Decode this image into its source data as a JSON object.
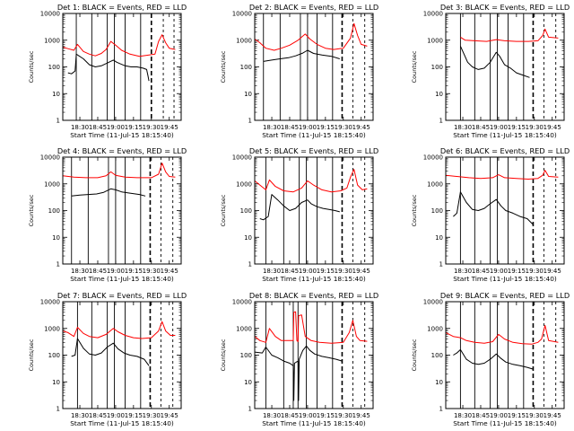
{
  "figure": {
    "ylabel": "Counts/sec",
    "xlabel": "Start Time (11-Jul-15 18:15:40)",
    "ytick_labels": [
      "1",
      "10",
      "100",
      "1000",
      "10000"
    ],
    "xtick_labels": [
      "18:30",
      "18:45",
      "19:00",
      "19:15",
      "19:30",
      "19:45"
    ],
    "colors": {
      "events": "#000000",
      "lld": "#ff0000",
      "axes": "#000000",
      "background": "#ffffff"
    }
  },
  "chart_data": [
    {
      "type": "line",
      "title": "Det 1: BLACK = Events, RED = LLD",
      "ylabel": "Counts/sec",
      "xlabel": "Start Time (11-Jul-15 18:15:40)",
      "y_scale": "log",
      "ylim": [
        1,
        10000
      ],
      "xlim": [
        "18:15:40",
        "19:55"
      ],
      "series": [
        {
          "name": "Events",
          "x": [
            "18:20",
            "18:23",
            "18:26",
            "18:27",
            "18:33",
            "18:38",
            "18:43",
            "18:48",
            "18:53",
            "18:58",
            "19:01",
            "19:04",
            "19:08",
            "19:13",
            "19:18",
            "19:23",
            "19:26",
            "19:27",
            "19:28"
          ],
          "y": [
            60,
            55,
            70,
            300,
            200,
            120,
            100,
            110,
            140,
            180,
            150,
            130,
            110,
            100,
            100,
            90,
            80,
            50,
            30
          ]
        },
        {
          "name": "LLD",
          "x": [
            "18:15:40",
            "18:20",
            "18:25",
            "18:28",
            "18:33",
            "18:38",
            "18:43",
            "18:48",
            "18:52",
            "18:56",
            "19:00",
            "19:05",
            "19:12",
            "19:20",
            "19:28",
            "19:33",
            "19:36",
            "19:39",
            "19:42",
            "19:45",
            "19:50"
          ],
          "y": [
            550,
            480,
            420,
            700,
            380,
            300,
            260,
            320,
            450,
            900,
            650,
            420,
            300,
            250,
            280,
            300,
            900,
            1600,
            800,
            500,
            450
          ]
        }
      ],
      "vlines_solid": [
        "18:27",
        "18:40",
        "18:53",
        "18:59",
        "19:08",
        "19:21"
      ],
      "vlines_dashed": [
        "19:30",
        "19:40",
        "19:49"
      ]
    },
    {
      "type": "line",
      "title": "Det 2: BLACK = Events, RED = LLD",
      "ylabel": "Counts/sec",
      "xlabel": "Start Time (11-Jul-15 18:15:40)",
      "y_scale": "log",
      "ylim": [
        1,
        10000
      ],
      "xlim": [
        "18:15:40",
        "19:55"
      ],
      "series": [
        {
          "name": "Events",
          "x": [
            "18:23",
            "18:30",
            "18:37",
            "18:44",
            "18:50",
            "18:56",
            "19:00",
            "19:05",
            "19:12",
            "19:20",
            "19:27"
          ],
          "y": [
            160,
            180,
            200,
            220,
            260,
            330,
            420,
            320,
            280,
            250,
            200
          ]
        },
        {
          "name": "LLD",
          "x": [
            "18:15:40",
            "18:20",
            "18:25",
            "18:32",
            "18:38",
            "18:45",
            "18:52",
            "18:58",
            "19:02",
            "19:08",
            "19:15",
            "19:22",
            "19:30",
            "19:36",
            "19:39",
            "19:42",
            "19:45",
            "19:50"
          ],
          "y": [
            1100,
            800,
            500,
            420,
            500,
            650,
            1000,
            1700,
            1100,
            700,
            500,
            450,
            500,
            1200,
            4200,
            1500,
            700,
            600
          ]
        }
      ],
      "vlines_solid": [
        "18:23",
        "18:37",
        "18:54",
        "19:00",
        "19:08",
        "19:21"
      ],
      "vlines_dashed": [
        "19:29",
        "19:38",
        "19:48"
      ]
    },
    {
      "type": "line",
      "title": "Det 3: BLACK = Events, RED = LLD",
      "ylabel": "Counts/sec",
      "xlabel": "Start Time (11-Jul-15 18:15:40)",
      "y_scale": "log",
      "ylim": [
        1,
        10000
      ],
      "xlim": [
        "18:15:40",
        "19:55"
      ],
      "series": [
        {
          "name": "Events",
          "x": [
            "18:28",
            "18:31",
            "18:34",
            "18:38",
            "18:43",
            "18:48",
            "18:53",
            "18:58",
            "19:01",
            "19:05",
            "19:10",
            "19:15",
            "19:20",
            "19:26"
          ],
          "y": [
            600,
            300,
            150,
            100,
            80,
            90,
            150,
            350,
            250,
            120,
            90,
            60,
            50,
            40
          ]
        },
        {
          "name": "LLD",
          "x": [
            "18:28",
            "18:32",
            "18:40",
            "18:50",
            "18:58",
            "19:05",
            "19:15",
            "19:25",
            "19:33",
            "19:37",
            "19:39",
            "19:42",
            "19:50"
          ],
          "y": [
            1300,
            1000,
            950,
            900,
            1050,
            950,
            900,
            900,
            950,
            1500,
            2600,
            1300,
            1200
          ]
        }
      ],
      "vlines_solid": [
        "18:28",
        "18:40",
        "18:53",
        "18:59",
        "19:08",
        "19:21"
      ],
      "vlines_dashed": [
        "19:29",
        "19:38",
        "19:48"
      ]
    },
    {
      "type": "line",
      "title": "Det 4: BLACK = Events, RED = LLD",
      "ylabel": "Counts/sec",
      "xlabel": "Start Time (11-Jul-15 18:15:40)",
      "y_scale": "log",
      "ylim": [
        1,
        10000
      ],
      "xlim": [
        "18:15:40",
        "19:55"
      ],
      "series": [
        {
          "name": "Events",
          "x": [
            "18:23",
            "18:30",
            "18:37",
            "18:44",
            "18:50",
            "18:56",
            "19:00",
            "19:05",
            "19:12",
            "19:20",
            "19:25"
          ],
          "y": [
            350,
            380,
            400,
            420,
            480,
            650,
            600,
            500,
            450,
            400,
            350
          ]
        },
        {
          "name": "LLD",
          "x": [
            "18:15:40",
            "18:25",
            "18:35",
            "18:45",
            "18:52",
            "18:56",
            "19:00",
            "19:08",
            "19:18",
            "19:30",
            "19:36",
            "19:39",
            "19:42",
            "19:45",
            "19:50"
          ],
          "y": [
            2000,
            1800,
            1700,
            1700,
            2000,
            2800,
            2100,
            1800,
            1700,
            1700,
            2300,
            6000,
            2800,
            1900,
            1800
          ]
        }
      ],
      "vlines_solid": [
        "18:23",
        "18:37",
        "18:54",
        "19:00",
        "19:08",
        "19:21"
      ],
      "vlines_dashed": [
        "19:29",
        "19:38",
        "19:48"
      ]
    },
    {
      "type": "line",
      "title": "Det 5: BLACK = Events, RED = LLD",
      "ylabel": "Counts/sec",
      "xlabel": "Start Time (11-Jul-15 18:15:40)",
      "y_scale": "log",
      "ylim": [
        1,
        10000
      ],
      "xlim": [
        "18:15:40",
        "19:55"
      ],
      "series": [
        {
          "name": "Events",
          "x": [
            "18:20",
            "18:23",
            "18:27",
            "18:30",
            "18:35",
            "18:40",
            "18:45",
            "18:50",
            "18:55",
            "19:00",
            "19:03",
            "19:08",
            "19:13",
            "19:18",
            "19:23",
            "19:27"
          ],
          "y": [
            50,
            45,
            60,
            400,
            250,
            150,
            100,
            120,
            200,
            250,
            180,
            140,
            120,
            110,
            100,
            90
          ]
        },
        {
          "name": "LLD",
          "x": [
            "18:15:40",
            "18:20",
            "18:25",
            "18:28",
            "18:33",
            "18:40",
            "18:48",
            "18:55",
            "19:00",
            "19:05",
            "19:12",
            "19:20",
            "19:28",
            "19:33",
            "19:36",
            "19:39",
            "19:42",
            "19:46",
            "19:50"
          ],
          "y": [
            1300,
            900,
            600,
            1400,
            800,
            550,
            500,
            700,
            1300,
            900,
            600,
            500,
            550,
            700,
            1800,
            3500,
            900,
            600,
            650
          ]
        }
      ],
      "vlines_solid": [
        "18:25",
        "18:40",
        "18:53",
        "18:59",
        "19:08",
        "19:21"
      ],
      "vlines_dashed": [
        "19:29",
        "19:38",
        "19:48"
      ]
    },
    {
      "type": "line",
      "title": "Det 6: BLACK = Events, RED = LLD",
      "ylabel": "Counts/sec",
      "xlabel": "Start Time (11-Jul-15 18:15:40)",
      "y_scale": "log",
      "ylim": [
        1,
        10000
      ],
      "xlim": [
        "18:15:40",
        "19:55"
      ],
      "series": [
        {
          "name": "Events",
          "x": [
            "18:22",
            "18:25",
            "18:28",
            "18:33",
            "18:38",
            "18:43",
            "18:48",
            "18:53",
            "18:58",
            "19:02",
            "19:06",
            "19:12",
            "19:18",
            "19:24",
            "19:29"
          ],
          "y": [
            60,
            80,
            500,
            200,
            110,
            100,
            120,
            180,
            260,
            150,
            100,
            80,
            60,
            50,
            30
          ]
        },
        {
          "name": "LLD",
          "x": [
            "18:15:40",
            "18:25",
            "18:35",
            "18:45",
            "18:55",
            "19:00",
            "19:05",
            "19:15",
            "19:25",
            "19:33",
            "19:37",
            "19:39",
            "19:42",
            "19:50"
          ],
          "y": [
            2100,
            1900,
            1700,
            1600,
            1700,
            2200,
            1700,
            1600,
            1500,
            1600,
            2100,
            3200,
            1900,
            1800
          ]
        }
      ],
      "vlines_solid": [
        "18:28",
        "18:40",
        "18:53",
        "18:59",
        "19:08",
        "19:21"
      ],
      "vlines_dashed": [
        "19:29",
        "19:38",
        "19:48"
      ]
    },
    {
      "type": "line",
      "title": "Det 7: BLACK = Events, RED = LLD",
      "ylabel": "Counts/sec",
      "xlabel": "Start Time (11-Jul-15 18:15:40)",
      "y_scale": "log",
      "ylim": [
        1,
        10000
      ],
      "xlim": [
        "18:15:40",
        "19:55"
      ],
      "series": [
        {
          "name": "Events",
          "x": [
            "18:23",
            "18:26",
            "18:28",
            "18:33",
            "18:38",
            "18:43",
            "18:48",
            "18:53",
            "18:58",
            "19:02",
            "19:07",
            "19:12",
            "19:18",
            "19:24",
            "19:28"
          ],
          "y": [
            90,
            100,
            420,
            180,
            110,
            100,
            120,
            200,
            280,
            170,
            120,
            100,
            90,
            70,
            40
          ]
        },
        {
          "name": "LLD",
          "x": [
            "18:15:40",
            "18:20",
            "18:25",
            "18:28",
            "18:33",
            "18:38",
            "18:45",
            "18:52",
            "18:58",
            "19:02",
            "19:08",
            "19:15",
            "19:22",
            "19:30",
            "19:36",
            "19:39",
            "19:42",
            "19:46",
            "19:50"
          ],
          "y": [
            800,
            700,
            500,
            1100,
            650,
            500,
            450,
            600,
            1000,
            750,
            550,
            450,
            420,
            450,
            800,
            1800,
            800,
            550,
            550
          ]
        }
      ],
      "vlines_solid": [
        "18:28",
        "18:40",
        "18:53",
        "18:59",
        "19:08",
        "19:21"
      ],
      "vlines_dashed": [
        "19:29",
        "19:38",
        "19:48"
      ]
    },
    {
      "type": "line",
      "title": "Det 8: BLACK = Events, RED = LLD",
      "ylabel": "Counts/sec",
      "xlabel": "Start Time (11-Jul-15 18:15:40)",
      "y_scale": "log",
      "ylim": [
        1,
        10000
      ],
      "xlim": [
        "18:15:40",
        "19:55"
      ],
      "series": [
        {
          "name": "Events",
          "x": [
            "18:15:40",
            "18:22",
            "18:25",
            "18:30",
            "18:35",
            "18:40",
            "18:45",
            "18:48",
            "18:48:30",
            "18:49",
            "18:52",
            "18:52:30",
            "18:53",
            "18:56",
            "18:59",
            "19:02",
            "19:06",
            "19:12",
            "19:18",
            "19:24",
            "19:29"
          ],
          "y": [
            130,
            120,
            200,
            100,
            80,
            60,
            50,
            40,
            2,
            50,
            60,
            2,
            70,
            150,
            220,
            150,
            110,
            90,
            80,
            70,
            60
          ]
        },
        {
          "name": "LLD",
          "x": [
            "18:15:40",
            "18:20",
            "18:25",
            "18:28",
            "18:33",
            "18:38",
            "18:45",
            "18:48",
            "18:48:30",
            "18:50",
            "18:51",
            "18:52",
            "18:52:30",
            "18:55",
            "18:58",
            "19:03",
            "19:10",
            "19:20",
            "19:30",
            "19:35",
            "19:38",
            "19:41",
            "19:44",
            "19:50"
          ],
          "y": [
            500,
            350,
            300,
            1000,
            500,
            350,
            350,
            350,
            4000,
            4200,
            350,
            320,
            3000,
            3200,
            500,
            350,
            300,
            280,
            300,
            700,
            2000,
            500,
            350,
            330
          ]
        }
      ],
      "vlines_solid": [
        "18:25",
        "18:40",
        "18:48",
        "18:52",
        "18:59",
        "19:08",
        "19:21"
      ],
      "vlines_dashed": [
        "19:29",
        "19:38",
        "19:48"
      ]
    },
    {
      "type": "line",
      "title": "Det 9: BLACK = Events, RED = LLD",
      "ylabel": "Counts/sec",
      "xlabel": "Start Time (11-Jul-15 18:15:40)",
      "y_scale": "log",
      "ylim": [
        1,
        10000
      ],
      "xlim": [
        "18:15:40",
        "19:55"
      ],
      "series": [
        {
          "name": "Events",
          "x": [
            "18:22",
            "18:25",
            "18:28",
            "18:33",
            "18:38",
            "18:43",
            "18:48",
            "18:53",
            "18:58",
            "19:02",
            "19:06",
            "19:12",
            "19:18",
            "19:24",
            "19:29"
          ],
          "y": [
            100,
            120,
            160,
            70,
            50,
            45,
            50,
            70,
            110,
            75,
            55,
            45,
            40,
            35,
            30
          ]
        },
        {
          "name": "LLD",
          "x": [
            "18:15:40",
            "18:22",
            "18:28",
            "18:33",
            "18:40",
            "18:48",
            "18:55",
            "19:00",
            "19:05",
            "19:12",
            "19:20",
            "19:28",
            "19:33",
            "19:36",
            "19:39",
            "19:42",
            "19:50"
          ],
          "y": [
            700,
            500,
            450,
            350,
            300,
            280,
            320,
            600,
            400,
            300,
            270,
            260,
            300,
            400,
            1300,
            350,
            300
          ]
        }
      ],
      "vlines_solid": [
        "18:28",
        "18:40",
        "18:53",
        "18:59",
        "19:08",
        "19:21"
      ],
      "vlines_dashed": [
        "19:29",
        "19:38",
        "19:48"
      ]
    }
  ]
}
